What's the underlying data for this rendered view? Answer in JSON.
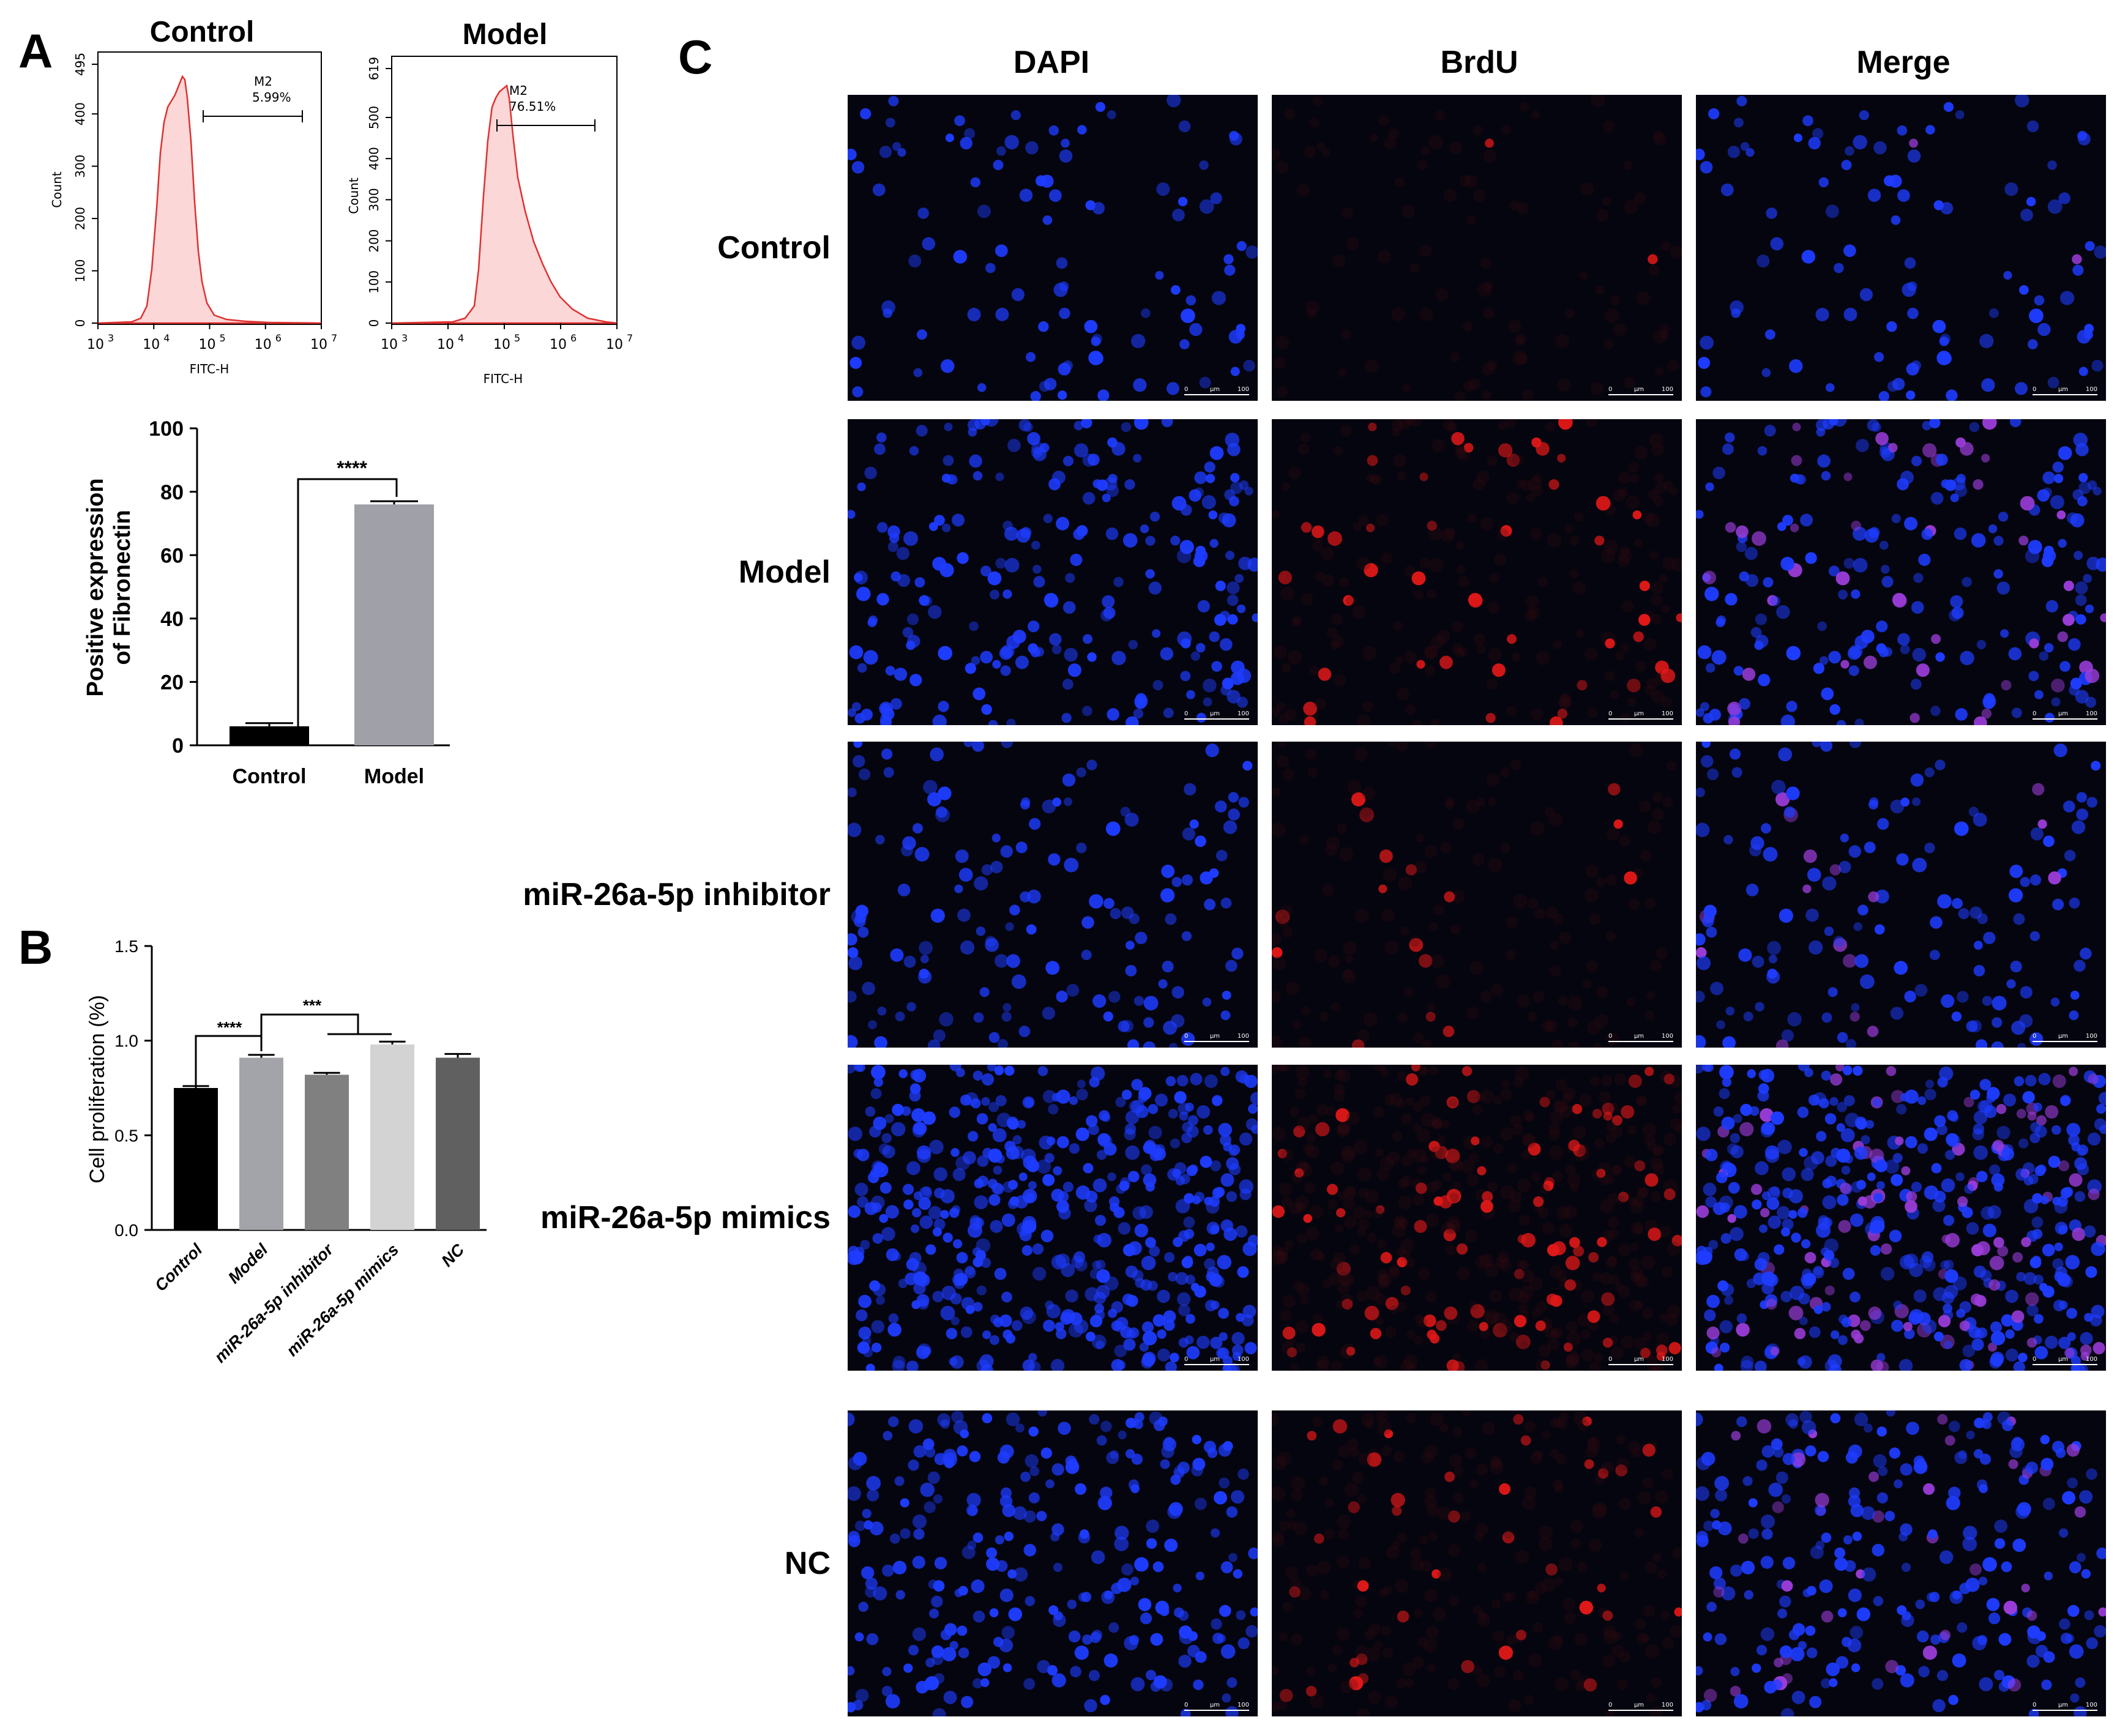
{
  "panels": {
    "a": "A",
    "b": "B",
    "c": "C"
  },
  "flow": {
    "control": {
      "title": "Control",
      "marker": "M2",
      "percent": "5.99%",
      "xlabel": "FITC-H",
      "ylabel": "Count",
      "yticks": [
        "0",
        "100",
        "200",
        "300",
        "400",
        "495"
      ],
      "ymax": 495,
      "xticks": [
        "10",
        "10",
        "10",
        "10",
        "10"
      ],
      "xexp": [
        "3",
        "4",
        "5",
        "6",
        "7"
      ]
    },
    "model": {
      "title": "Model",
      "marker": "M2",
      "percent": "76.51%",
      "xlabel": "FITC-H",
      "ylabel": "Count",
      "yticks": [
        "0",
        "100",
        "200",
        "300",
        "400",
        "500",
        "619"
      ],
      "ymax": 619,
      "xticks": [
        "10",
        "10",
        "10",
        "10",
        "10"
      ],
      "xexp": [
        "3",
        "4",
        "5",
        "6",
        "7"
      ]
    }
  },
  "chart_data": [
    {
      "type": "bar",
      "panel": "A",
      "categories": [
        "Control",
        "Model"
      ],
      "values": [
        6,
        76
      ],
      "errors": [
        1,
        1
      ],
      "colors": [
        "#000000",
        "#a0a0a8"
      ],
      "ylabel_line1": "Positive expression",
      "ylabel_line2": "of Fibronectin",
      "ylim": [
        0,
        100
      ],
      "yticks": [
        "0",
        "20",
        "40",
        "60",
        "80",
        "100"
      ],
      "significance": "****"
    },
    {
      "type": "bar",
      "panel": "B",
      "categories": [
        "Control",
        "Model",
        "miR-26a-5p inhibitor",
        "miR-26a-5p mimics",
        "NC"
      ],
      "values": [
        0.75,
        0.91,
        0.82,
        0.98,
        0.91
      ],
      "errors": [
        0.01,
        0.015,
        0.01,
        0.015,
        0.02
      ],
      "colors": [
        "#000000",
        "#a3a3aa",
        "#808080",
        "#d3d3d3",
        "#606060"
      ],
      "ylabel": "Cell proliferation (%)",
      "ylim": [
        0,
        1.5
      ],
      "yticks": [
        "0.0",
        "0.5",
        "1.0",
        "1.5"
      ],
      "significance": [
        "****",
        "***"
      ]
    }
  ],
  "micrographs": {
    "columns": [
      "DAPI",
      "BrdU",
      "Merge"
    ],
    "rows": [
      "Control",
      "Model",
      "miR-26a-5p  inhibitor",
      "miR-26a-5p mimics",
      "NC"
    ],
    "scalebar": {
      "start": "0",
      "unit": "μm",
      "end": "100"
    },
    "colors": {
      "dapi": "#1e3cff",
      "brdu": "#e01818",
      "merge": "#9a3cd8"
    }
  }
}
